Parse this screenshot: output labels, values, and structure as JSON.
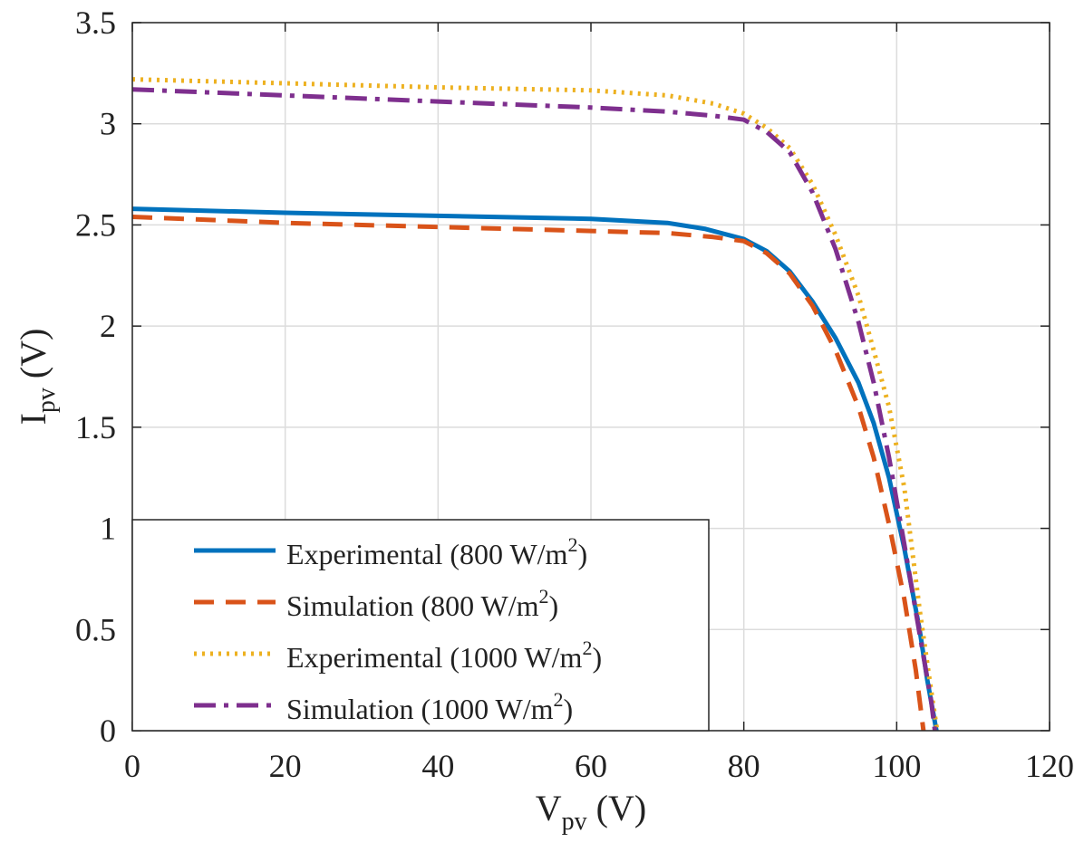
{
  "chart_data": {
    "type": "line",
    "title": "",
    "xlabel": {
      "main": "V",
      "sub": "pv",
      "unit": " (V)"
    },
    "ylabel": {
      "main": "I",
      "sub": "pv",
      "unit": " (V)"
    },
    "xlim": [
      0,
      120
    ],
    "ylim": [
      0,
      3.5
    ],
    "xticks": [
      0,
      20,
      40,
      60,
      80,
      100,
      120
    ],
    "yticks": [
      0,
      0.5,
      1,
      1.5,
      2,
      2.5,
      3,
      3.5
    ],
    "xtick_labels": [
      "0",
      "20",
      "40",
      "60",
      "80",
      "100",
      "120"
    ],
    "ytick_labels": [
      "0",
      "0.5",
      "1",
      "1.5",
      "2",
      "2.5",
      "3",
      "3.5"
    ],
    "grid": true,
    "legend_position": "bottom-left",
    "series": [
      {
        "name": "Experimental (800 W/m2)",
        "label_main": "Experimental (800 W/m",
        "label_sup": "2",
        "label_end": ")",
        "color": "#0072BD",
        "style": "solid",
        "points": [
          [
            0,
            2.58
          ],
          [
            20,
            2.56
          ],
          [
            40,
            2.545
          ],
          [
            60,
            2.53
          ],
          [
            70,
            2.51
          ],
          [
            75,
            2.48
          ],
          [
            80,
            2.43
          ],
          [
            83,
            2.37
          ],
          [
            86,
            2.27
          ],
          [
            89,
            2.12
          ],
          [
            92,
            1.94
          ],
          [
            95,
            1.72
          ],
          [
            97,
            1.52
          ],
          [
            99,
            1.25
          ],
          [
            101,
            0.9
          ],
          [
            103,
            0.5
          ],
          [
            104,
            0.25
          ],
          [
            105.2,
            0
          ]
        ]
      },
      {
        "name": "Simulation (800 W/m2)",
        "label_main": "Simulation (800 W/m",
        "label_sup": "2",
        "label_end": ")",
        "color": "#D95319",
        "style": "dashed",
        "points": [
          [
            0,
            2.54
          ],
          [
            20,
            2.51
          ],
          [
            40,
            2.49
          ],
          [
            60,
            2.47
          ],
          [
            70,
            2.46
          ],
          [
            76,
            2.44
          ],
          [
            80,
            2.42
          ],
          [
            83,
            2.36
          ],
          [
            86,
            2.26
          ],
          [
            89,
            2.1
          ],
          [
            92,
            1.88
          ],
          [
            95,
            1.6
          ],
          [
            97,
            1.35
          ],
          [
            99,
            1.02
          ],
          [
            101,
            0.65
          ],
          [
            102.5,
            0.3
          ],
          [
            103.5,
            0
          ]
        ]
      },
      {
        "name": "Experimental (1000 W/m2)",
        "label_main": "Experimental (1000 W/m",
        "label_sup": "2",
        "label_end": ")",
        "color": "#EDB120",
        "style": "dotted",
        "points": [
          [
            0,
            3.22
          ],
          [
            20,
            3.2
          ],
          [
            40,
            3.18
          ],
          [
            60,
            3.165
          ],
          [
            70,
            3.14
          ],
          [
            76,
            3.1
          ],
          [
            80,
            3.05
          ],
          [
            83,
            2.98
          ],
          [
            86,
            2.88
          ],
          [
            89,
            2.7
          ],
          [
            92,
            2.45
          ],
          [
            95,
            2.15
          ],
          [
            97,
            1.88
          ],
          [
            99,
            1.6
          ],
          [
            101,
            1.2
          ],
          [
            103,
            0.6
          ],
          [
            104.5,
            0.2
          ],
          [
            105.3,
            0
          ]
        ]
      },
      {
        "name": "Simulation (1000 W/m2)",
        "label_main": "Simulation (1000 W/m",
        "label_sup": "2",
        "label_end": ")",
        "color": "#7E2F8E",
        "style": "dashdot",
        "points": [
          [
            0,
            3.17
          ],
          [
            20,
            3.14
          ],
          [
            40,
            3.11
          ],
          [
            60,
            3.08
          ],
          [
            70,
            3.06
          ],
          [
            76,
            3.04
          ],
          [
            80,
            3.02
          ],
          [
            83,
            2.96
          ],
          [
            86,
            2.86
          ],
          [
            89,
            2.66
          ],
          [
            92,
            2.38
          ],
          [
            95,
            2.02
          ],
          [
            97,
            1.72
          ],
          [
            99,
            1.35
          ],
          [
            101,
            0.92
          ],
          [
            103,
            0.48
          ],
          [
            104.5,
            0.15
          ],
          [
            105,
            0
          ]
        ]
      }
    ]
  }
}
